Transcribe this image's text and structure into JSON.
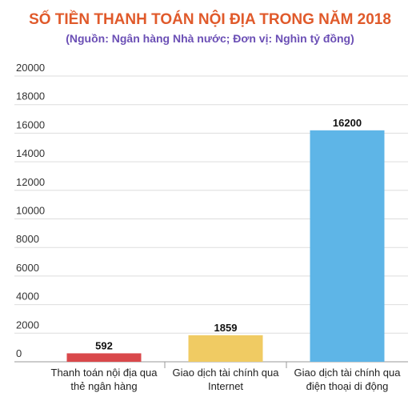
{
  "chart_data": {
    "type": "bar",
    "title": "SỐ TIỀN THANH TOÁN NỘI ĐỊA TRONG NĂM 2018",
    "subtitle": "(Nguồn: Ngân hàng Nhà nước; Đơn vị: Nghìn tỷ đồng)",
    "categories": [
      [
        "Thanh toán nội địa qua",
        "thẻ ngân hàng"
      ],
      [
        "Giao dịch tài chính qua",
        "Internet"
      ],
      [
        "Giao dịch tài chính qua",
        "điện thoại di động"
      ]
    ],
    "values": [
      592,
      1859,
      16200
    ],
    "data_labels": [
      "592",
      "1859",
      "16200"
    ],
    "bar_colors": [
      "#d9484b",
      "#f0cb63",
      "#5eb5e7"
    ],
    "ylim": [
      0,
      20000
    ],
    "yticks": [
      0,
      2000,
      4000,
      6000,
      8000,
      10000,
      12000,
      14000,
      16000,
      18000,
      20000
    ],
    "ytick_labels": [
      "0",
      "2000",
      "4000",
      "6000",
      "8000",
      "10000",
      "12000",
      "14000",
      "16000",
      "18000",
      "20000"
    ],
    "xlabel": "",
    "ylabel": "",
    "grid": true,
    "legend": "none",
    "colors": {
      "title": "#e05a2b",
      "subtitle": "#6b4fb5",
      "grid": "#dddddd",
      "axis": "#999999"
    }
  }
}
